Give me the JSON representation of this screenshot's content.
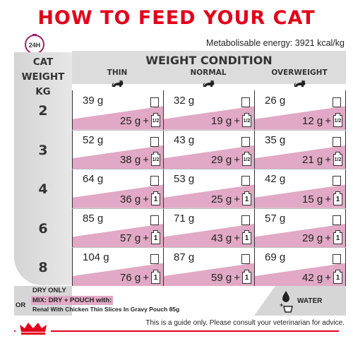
{
  "title": "HOW TO FEED YOUR CAT",
  "badge": "24H",
  "energy_text": "Metabolisable energy: 3921 kcal/kg",
  "cat_weight_label": [
    "CAT",
    "WEIGHT",
    "KG"
  ],
  "weight_condition_title": "WEIGHT CONDITION",
  "conditions": [
    "THIN",
    "NORMAL",
    "OVERWEIGHT"
  ],
  "rows": [
    {
      "kg": "2",
      "cells": [
        {
          "dry": "39 g",
          "mix": "25 g",
          "pouch": "1/2"
        },
        {
          "dry": "32 g",
          "mix": "19 g",
          "pouch": "1/2"
        },
        {
          "dry": "26 g",
          "mix": "12 g",
          "pouch": "1/2"
        }
      ]
    },
    {
      "kg": "3",
      "cells": [
        {
          "dry": "52 g",
          "mix": "38 g",
          "pouch": "1/2"
        },
        {
          "dry": "43 g",
          "mix": "29 g",
          "pouch": "1/2"
        },
        {
          "dry": "35 g",
          "mix": "21 g",
          "pouch": "1/2"
        }
      ]
    },
    {
      "kg": "4",
      "cells": [
        {
          "dry": "64 g",
          "mix": "36 g",
          "pouch": "1"
        },
        {
          "dry": "53 g",
          "mix": "25 g",
          "pouch": "1"
        },
        {
          "dry": "42 g",
          "mix": "15 g",
          "pouch": "1"
        }
      ]
    },
    {
      "kg": "6",
      "cells": [
        {
          "dry": "85 g",
          "mix": "57 g",
          "pouch": "1"
        },
        {
          "dry": "71 g",
          "mix": "43 g",
          "pouch": "1"
        },
        {
          "dry": "57 g",
          "mix": "29 g",
          "pouch": "1"
        }
      ]
    },
    {
      "kg": "8",
      "cells": [
        {
          "dry": "104 g",
          "mix": "76 g",
          "pouch": "1"
        },
        {
          "dry": "87 g",
          "mix": "59 g",
          "pouch": "1"
        },
        {
          "dry": "69 g",
          "mix": "42 g",
          "pouch": "1"
        }
      ]
    }
  ],
  "plus": "+",
  "legend": {
    "dry_only": "DRY ONLY",
    "or": "OR",
    "mix": "MIX: DRY + POUCH with:",
    "mix_sub": "Renal With Chicken Thin Slices In Gravy Pouch 85g",
    "water": "WATER"
  },
  "guide": "This is a guide only. Please consult your veterinarian for advice.",
  "colors": {
    "red": "#e2001a",
    "pink": "#e1a9c5",
    "grey": "#d6d6d6"
  }
}
